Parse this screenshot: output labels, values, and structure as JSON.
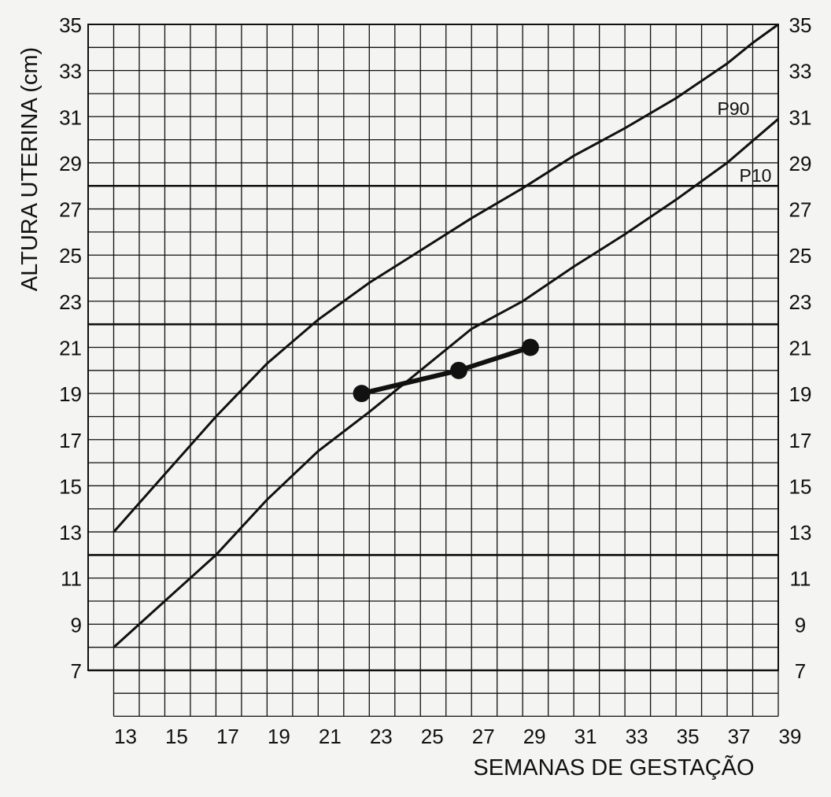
{
  "chart_data": {
    "type": "line",
    "title": "",
    "ylabel": "ALTURA UTERINA (cm)",
    "xlabel": "SEMANAS DE GESTAÇÃO",
    "xlim": [
      12,
      39
    ],
    "ylim": [
      6,
      35
    ],
    "x_ticks": [
      13,
      15,
      17,
      19,
      21,
      23,
      25,
      27,
      29,
      31,
      33,
      35,
      37,
      39
    ],
    "y_ticks": [
      7,
      9,
      11,
      13,
      15,
      17,
      19,
      21,
      23,
      25,
      27,
      29,
      31,
      33,
      35
    ],
    "grid": true,
    "major_gridlines_y": [
      7,
      12,
      22,
      28
    ],
    "colors": {
      "ink": "#111111",
      "paper": "#f4f4f2"
    },
    "series": [
      {
        "name": "P90",
        "x": [
          13,
          15,
          17,
          19,
          21,
          23,
          25,
          27,
          29,
          31,
          33,
          35,
          37,
          38,
          39
        ],
        "y": [
          13,
          15.5,
          18,
          20.3,
          22.2,
          23.8,
          25.2,
          26.6,
          27.9,
          29.3,
          30.5,
          31.8,
          33.3,
          34.2,
          35
        ]
      },
      {
        "name": "P10",
        "x": [
          13,
          15,
          17,
          19,
          21,
          23,
          25,
          27,
          29,
          31,
          33,
          35,
          37,
          39
        ],
        "y": [
          8,
          10,
          12,
          14.4,
          16.5,
          18.2,
          20,
          21.8,
          23,
          24.5,
          25.9,
          27.4,
          29.0,
          30.9
        ]
      },
      {
        "name": "",
        "style": "measured",
        "x": [
          22.7,
          26.5,
          29.3
        ],
        "y": [
          19,
          20,
          21
        ]
      }
    ]
  }
}
